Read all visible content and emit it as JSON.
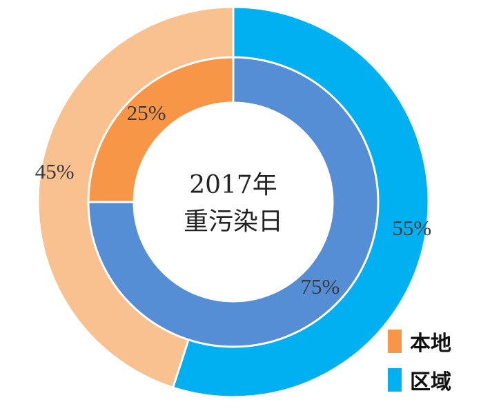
{
  "chart_data": {
    "type": "pie",
    "center_label": [
      "2017年",
      "重污染日"
    ],
    "rings": [
      {
        "ring": "outer",
        "slices": [
          {
            "label": "区域",
            "value": 55,
            "display": "55%",
            "color": "#00b0f0"
          },
          {
            "label": "本地",
            "value": 45,
            "display": "45%",
            "color": "#f8c18f"
          }
        ]
      },
      {
        "ring": "inner",
        "slices": [
          {
            "label": "区域",
            "value": 75,
            "display": "75%",
            "color": "#558ed5"
          },
          {
            "label": "本地",
            "value": 25,
            "display": "25%",
            "color": "#f79646"
          }
        ]
      }
    ],
    "legend": [
      {
        "label": "本地",
        "color": "#f79646"
      },
      {
        "label": "区域",
        "color": "#00b0f0"
      }
    ],
    "legend_position": "bottom-right"
  }
}
